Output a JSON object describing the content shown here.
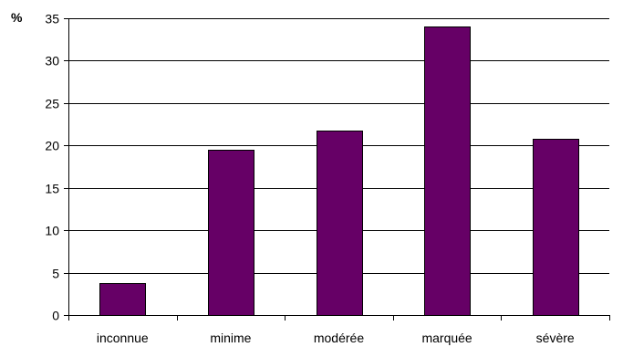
{
  "chart_data": {
    "type": "bar",
    "title": "",
    "xlabel": "",
    "ylabel": "%",
    "categories": [
      "inconnue",
      "minime",
      "modérée",
      "marquée",
      "sévère"
    ],
    "values": [
      3.8,
      19.5,
      21.8,
      34.0,
      20.8
    ],
    "ylim": [
      0,
      35
    ],
    "yticks": [
      "0",
      "5",
      "10",
      "15",
      "20",
      "25",
      "30",
      "35"
    ],
    "grid": true,
    "legend": "none"
  },
  "colors": {
    "bar_fill": "#660066",
    "bar_stroke": "#000000",
    "grid": "#000000",
    "axis": "#000000"
  }
}
